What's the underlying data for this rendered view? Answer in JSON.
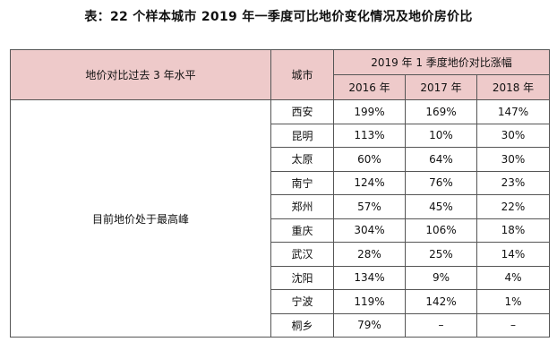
{
  "title": "表：22 个样本城市 2019 年一季度可比地价变化情况及地价房价比",
  "header": {
    "col_desc": "地价对比过去 3 年水平",
    "col_city": "城市",
    "group_label": "2019 年 1 季度地价对比涨幅",
    "years": [
      "2016 年",
      "2017 年",
      "2018 年"
    ]
  },
  "group": {
    "label": "目前地价处于最高峰"
  },
  "rows": [
    {
      "city": "西安",
      "y2016": "199%",
      "y2017": "169%",
      "y2018": "147%"
    },
    {
      "city": "昆明",
      "y2016": "113%",
      "y2017": "10%",
      "y2018": "30%"
    },
    {
      "city": "太原",
      "y2016": "60%",
      "y2017": "64%",
      "y2018": "30%"
    },
    {
      "city": "南宁",
      "y2016": "124%",
      "y2017": "76%",
      "y2018": "23%"
    },
    {
      "city": "郑州",
      "y2016": "57%",
      "y2017": "45%",
      "y2018": "22%"
    },
    {
      "city": "重庆",
      "y2016": "304%",
      "y2017": "106%",
      "y2018": "18%"
    },
    {
      "city": "武汉",
      "y2016": "28%",
      "y2017": "25%",
      "y2018": "14%"
    },
    {
      "city": "沈阳",
      "y2016": "134%",
      "y2017": "9%",
      "y2018": "4%"
    },
    {
      "city": "宁波",
      "y2016": "119%",
      "y2017": "142%",
      "y2018": "1%"
    },
    {
      "city": "桐乡",
      "y2016": "79%",
      "y2017": "–",
      "y2018": "–"
    }
  ],
  "colors": {
    "header_bg": "#eecaca",
    "border": "#555555",
    "text": "#111111"
  }
}
